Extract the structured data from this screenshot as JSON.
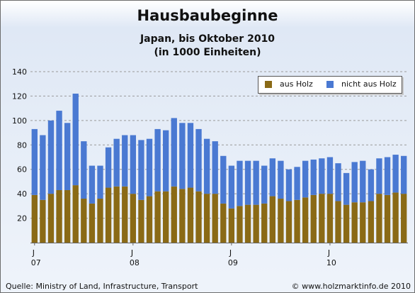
{
  "title": "Hausbaubeginne",
  "subtitle_line1": "Japan, bis Oktober 2010",
  "subtitle_line2": "(in 1000 Einheiten)",
  "source": "Quelle: Ministry of Land, Infrastructure, Transport",
  "copyright": "© www.holzmarktinfo.de 2010",
  "colors": {
    "holz": "#8a6a16",
    "nicht_holz": "#4a79d2",
    "grid": "#9a9a9a"
  },
  "chart_data": {
    "type": "bar",
    "stacked": true,
    "title": "Hausbaubeginne",
    "subtitle": "Japan, bis Oktober 2010 (in 1000 Einheiten)",
    "ylim": [
      0,
      140
    ],
    "yticks": [
      20,
      40,
      60,
      80,
      100,
      120,
      140
    ],
    "grid": "horizontal dashed",
    "legend_position": "top-right",
    "x_ticks": [
      {
        "month": "J",
        "year": "07",
        "index": 0
      },
      {
        "month": "J",
        "year": "08",
        "index": 12
      },
      {
        "month": "J",
        "year": "09",
        "index": 24
      },
      {
        "month": "J",
        "year": "10",
        "index": 36
      }
    ],
    "categories": [
      "2007-01",
      "2007-02",
      "2007-03",
      "2007-04",
      "2007-05",
      "2007-06",
      "2007-07",
      "2007-08",
      "2007-09",
      "2007-10",
      "2007-11",
      "2007-12",
      "2008-01",
      "2008-02",
      "2008-03",
      "2008-04",
      "2008-05",
      "2008-06",
      "2008-07",
      "2008-08",
      "2008-09",
      "2008-10",
      "2008-11",
      "2008-12",
      "2009-01",
      "2009-02",
      "2009-03",
      "2009-04",
      "2009-05",
      "2009-06",
      "2009-07",
      "2009-08",
      "2009-09",
      "2009-10",
      "2009-11",
      "2009-12",
      "2010-01",
      "2010-02",
      "2010-03",
      "2010-04",
      "2010-05",
      "2010-06",
      "2010-07",
      "2010-08",
      "2010-09",
      "2010-10"
    ],
    "series": [
      {
        "name": "aus Holz",
        "values": [
          39,
          35,
          40,
          43,
          43,
          47,
          36,
          32,
          36,
          45,
          46,
          46,
          40,
          35,
          38,
          42,
          42,
          46,
          44,
          45,
          42,
          40,
          40,
          32,
          28,
          30,
          31,
          31,
          32,
          38,
          36,
          34,
          35,
          37,
          39,
          40,
          40,
          34,
          31,
          33,
          33,
          34,
          40,
          39,
          41,
          40
        ]
      },
      {
        "name": "nicht aus Holz",
        "values": [
          54,
          53,
          60,
          65,
          55,
          75,
          47,
          31,
          27,
          33,
          39,
          42,
          48,
          49,
          47,
          51,
          50,
          56,
          54,
          53,
          51,
          45,
          43,
          39,
          35,
          37,
          36,
          36,
          31,
          31,
          31,
          26,
          27,
          30,
          29,
          29,
          30,
          31,
          26,
          33,
          34,
          26,
          29,
          31,
          31,
          31
        ]
      }
    ]
  }
}
